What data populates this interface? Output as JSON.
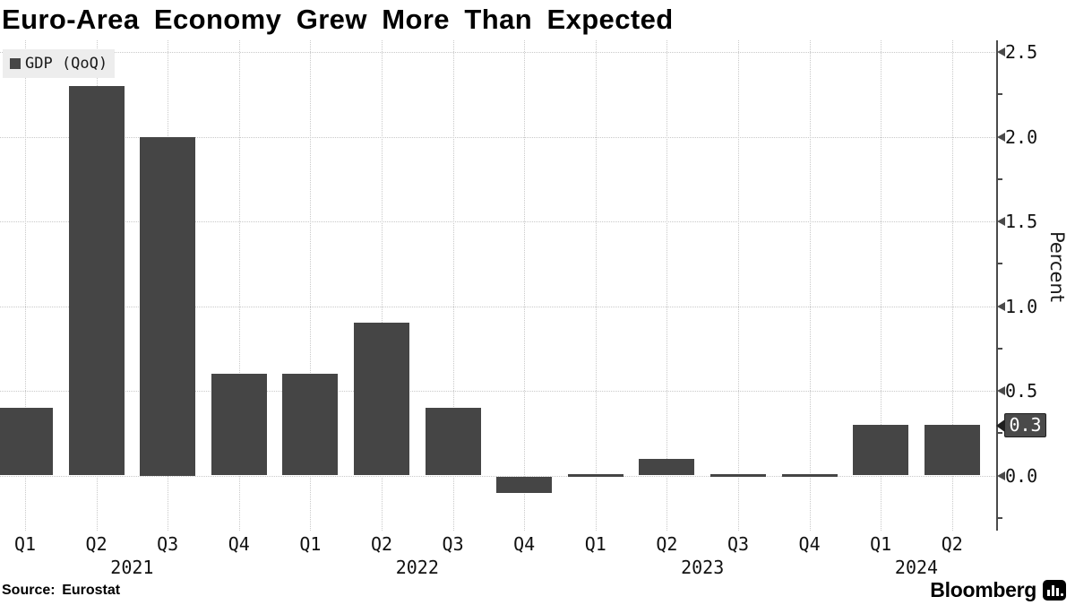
{
  "title": "Euro-Area Economy Grew More Than Expected",
  "legend": {
    "label": "GDP (QoQ)",
    "swatch_color": "#474747"
  },
  "source": "Source: Eurostat",
  "brand": {
    "name": "Bloomberg",
    "icon": "bloomberg-chart-icon"
  },
  "colors": {
    "bar": "#454545",
    "gridline": "#c9c9c9",
    "axis": "#4a4a4a",
    "badge_bg": "#4a4a4a",
    "badge_text": "#ffffff",
    "legend_bg": "#ededed"
  },
  "y_axis": {
    "label": "Percent",
    "major_ticks": [
      0.0,
      0.5,
      1.0,
      1.5,
      2.0,
      2.5
    ],
    "minor_ticks": [
      -0.25,
      0.25,
      0.75,
      1.25,
      1.75,
      2.25
    ],
    "marker": {
      "label": "0.3",
      "value": 0.3
    }
  },
  "x_axis": {
    "quarter_labels": [
      "Q1",
      "Q2",
      "Q3",
      "Q4",
      "Q1",
      "Q2",
      "Q3",
      "Q4",
      "Q1",
      "Q2",
      "Q3",
      "Q4",
      "Q1",
      "Q2"
    ],
    "year_labels": [
      {
        "label": "2021",
        "between": [
          1,
          2
        ]
      },
      {
        "label": "2022",
        "between": [
          5,
          6
        ]
      },
      {
        "label": "2023",
        "between": [
          9,
          10
        ]
      },
      {
        "label": "2024",
        "between": [
          12,
          13
        ]
      }
    ]
  },
  "chart_data": {
    "type": "bar",
    "title": "Euro-Area Economy Grew More Than Expected",
    "series_name": "GDP (QoQ)",
    "categories": [
      "Q1 2021",
      "Q2 2021",
      "Q3 2021",
      "Q4 2021",
      "Q1 2022",
      "Q2 2022",
      "Q3 2022",
      "Q4 2022",
      "Q1 2023",
      "Q2 2023",
      "Q3 2023",
      "Q4 2023",
      "Q1 2024",
      "Q2 2024"
    ],
    "values": [
      0.4,
      2.3,
      2.0,
      0.6,
      0.6,
      0.9,
      0.4,
      -0.1,
      0.0,
      0.1,
      0.0,
      0.0,
      0.3,
      0.3
    ],
    "xlabel": "",
    "ylabel": "Percent",
    "ylim": [
      -0.33,
      2.57
    ],
    "grid": "dotted",
    "legend_position": "top-left",
    "last_value_marker": 0.3,
    "source": "Eurostat"
  }
}
